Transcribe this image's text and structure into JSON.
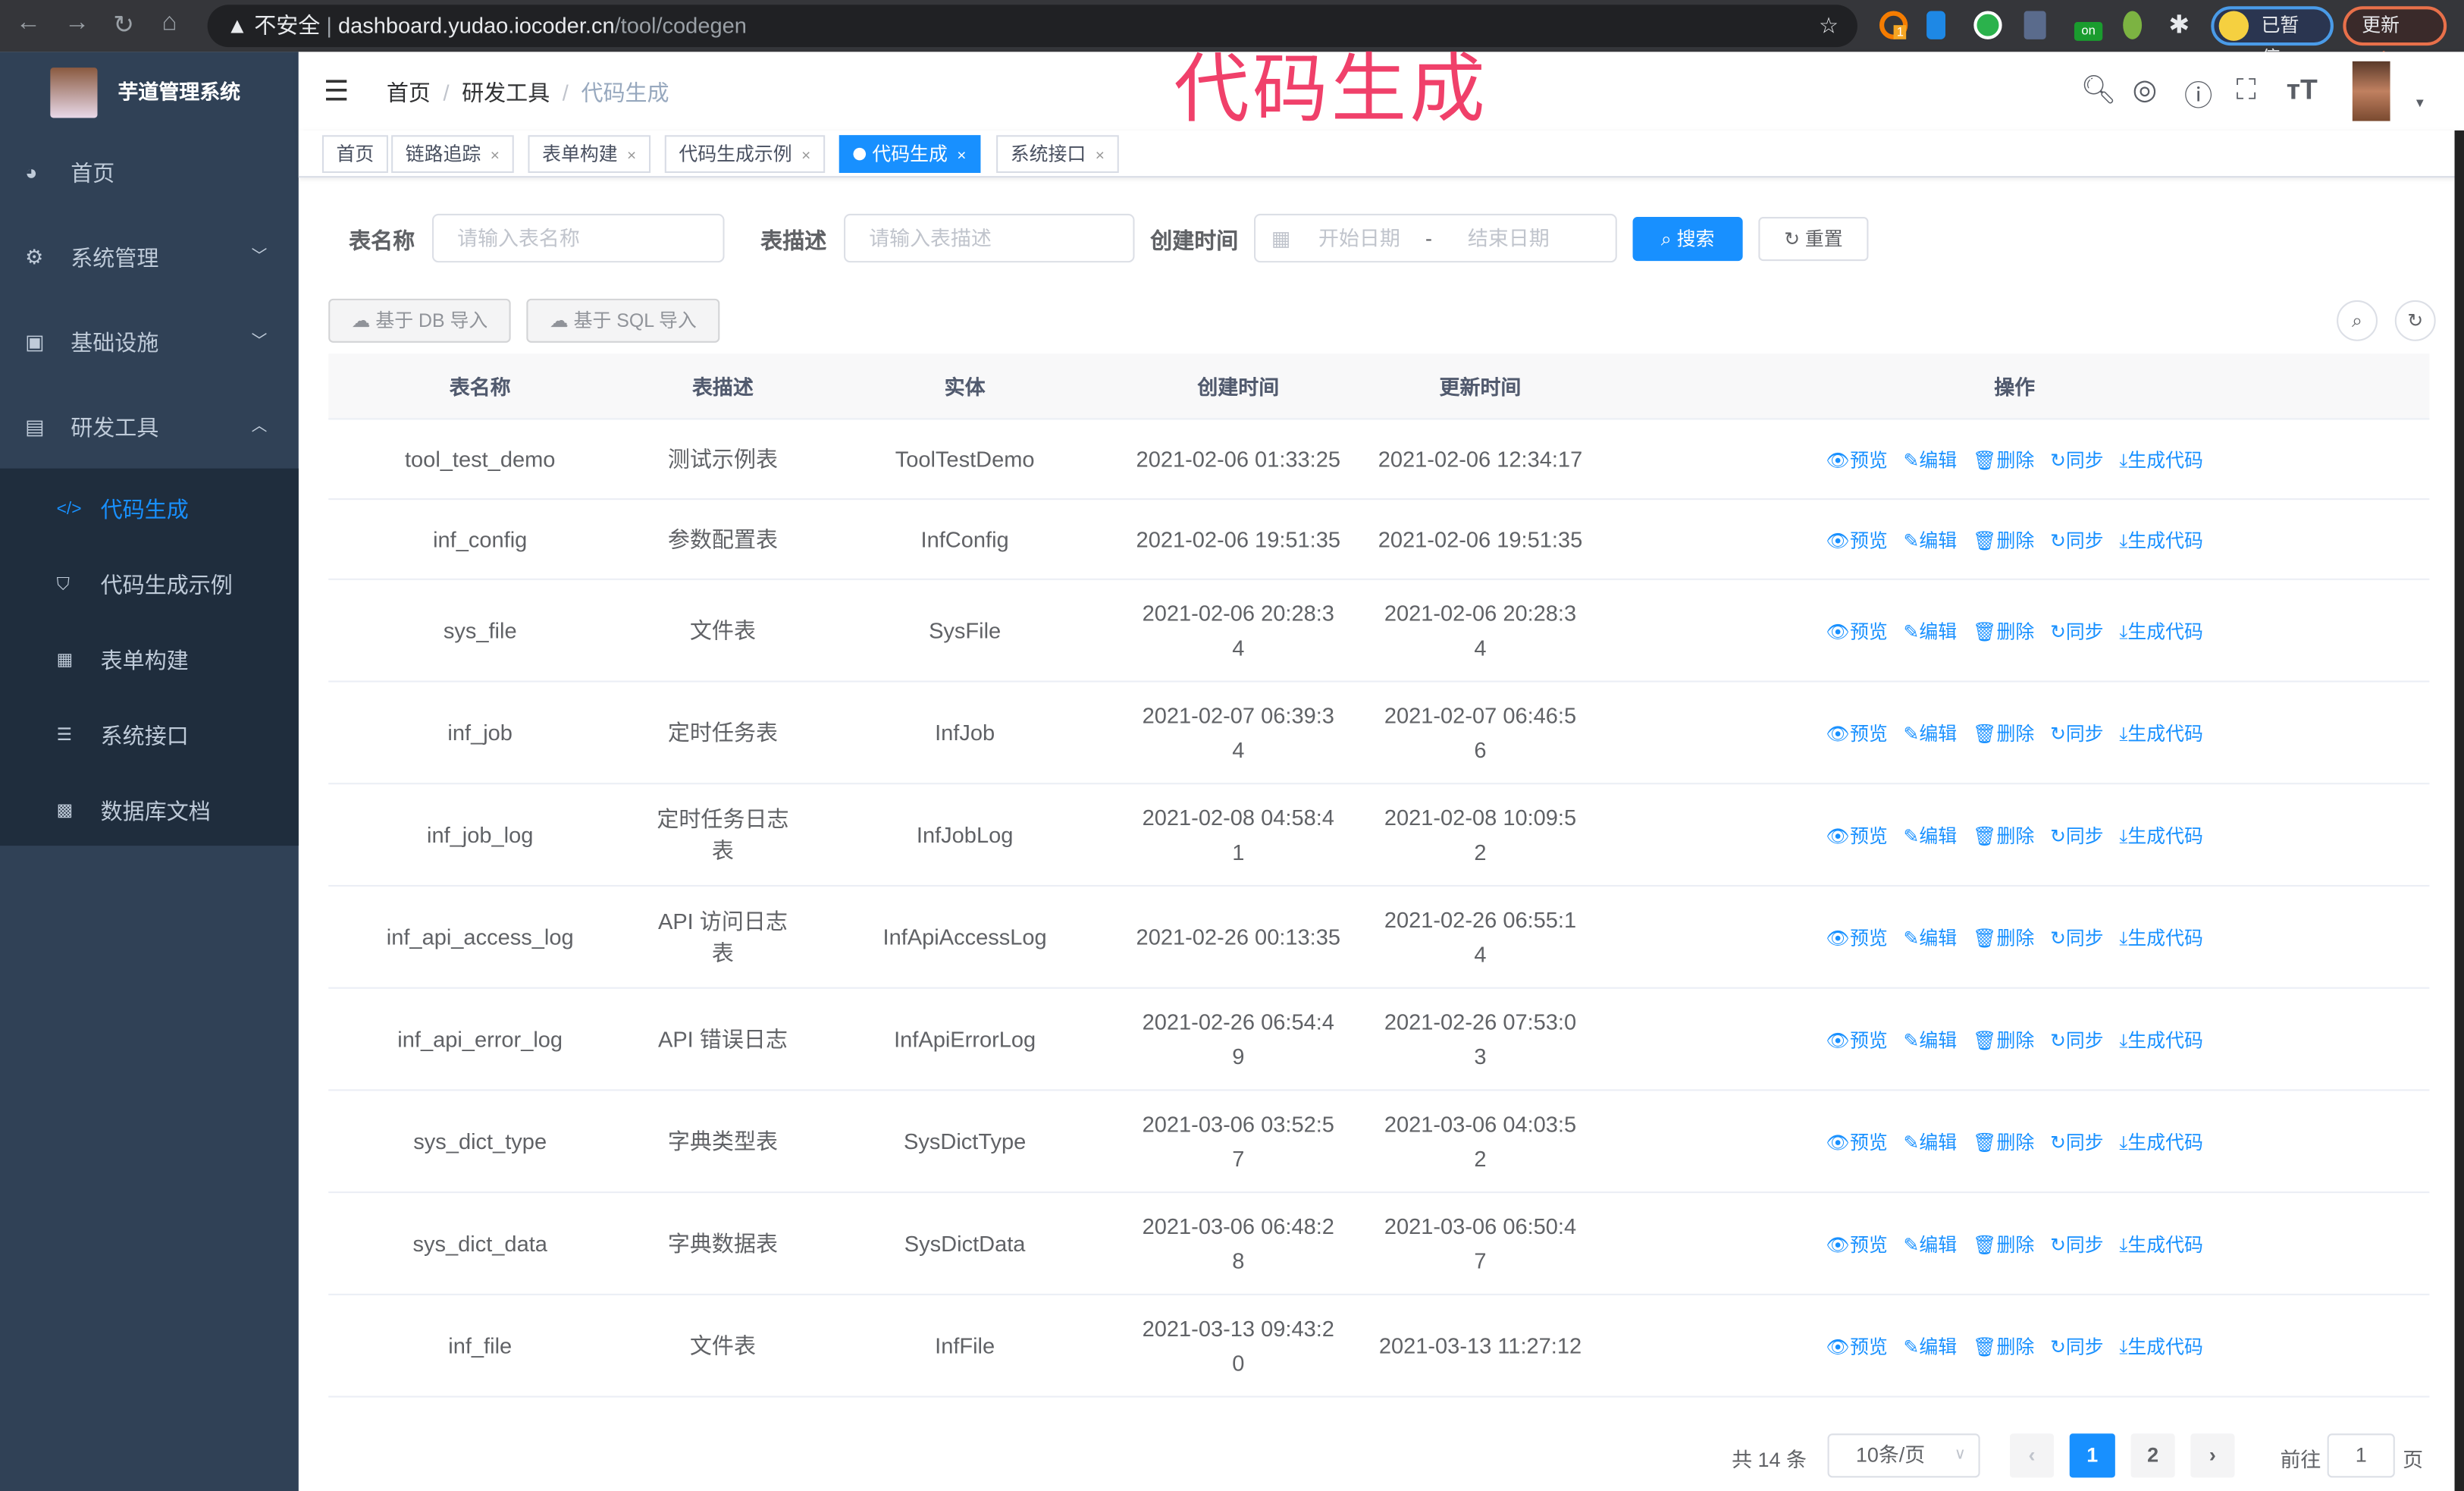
{
  "browser": {
    "url_prefix": "不安全",
    "url_host": "dashboard.yudao.iocoder.cn",
    "url_path": "/tool/codegen",
    "paused": "已暂停",
    "update": "更新",
    "ext_badge": "1",
    "ext_on": "on"
  },
  "watermark": "代码生成",
  "sidebar": {
    "brand": "芋道管理系统",
    "items": [
      {
        "label": "首页",
        "icon": "dashboard-icon"
      },
      {
        "label": "系统管理",
        "icon": "gear-icon"
      },
      {
        "label": "基础设施",
        "icon": "monitor-icon"
      },
      {
        "label": "研发工具",
        "icon": "toolbox-icon"
      }
    ],
    "sub_items": [
      {
        "label": "代码生成",
        "icon": "code-icon",
        "active": true
      },
      {
        "label": "代码生成示例",
        "icon": "shield-icon"
      },
      {
        "label": "表单构建",
        "icon": "form-icon"
      },
      {
        "label": "系统接口",
        "icon": "sliders-icon"
      },
      {
        "label": "数据库文档",
        "icon": "table-icon"
      }
    ]
  },
  "breadcrumb": [
    "首页",
    "研发工具",
    "代码生成"
  ],
  "tags": [
    {
      "label": "首页"
    },
    {
      "label": "链路追踪"
    },
    {
      "label": "表单构建"
    },
    {
      "label": "代码生成示例"
    },
    {
      "label": "代码生成",
      "active": true
    },
    {
      "label": "系统接口"
    }
  ],
  "search": {
    "name_label": "表名称",
    "name_placeholder": "请输入表名称",
    "desc_label": "表描述",
    "desc_placeholder": "请输入表描述",
    "time_label": "创建时间",
    "start_placeholder": "开始日期",
    "range_sep": "-",
    "end_placeholder": "结束日期",
    "search_btn": "搜索",
    "reset_btn": "重置"
  },
  "toolbar": {
    "import_db": "基于 DB 导入",
    "import_sql": "基于 SQL 导入"
  },
  "table": {
    "headers": [
      "表名称",
      "表描述",
      "实体",
      "创建时间",
      "更新时间",
      "操作"
    ],
    "actions": [
      "预览",
      "编辑",
      "删除",
      "同步",
      "生成代码"
    ],
    "rows": [
      [
        "tool_test_demo",
        "测试示例表",
        "ToolTestDemo",
        "2021-02-06 01:33:25",
        "2021-02-06 12:34:17"
      ],
      [
        "inf_config",
        "参数配置表",
        "InfConfig",
        "2021-02-06 19:51:35",
        "2021-02-06 19:51:35"
      ],
      [
        "sys_file",
        "文件表",
        "SysFile",
        "2021-02-06 20:28:34",
        "2021-02-06 20:28:34"
      ],
      [
        "inf_job",
        "定时任务表",
        "InfJob",
        "2021-02-07 06:39:34",
        "2021-02-07 06:46:56"
      ],
      [
        "inf_job_log",
        "定时任务日志表",
        "InfJobLog",
        "2021-02-08 04:58:41",
        "2021-02-08 10:09:52"
      ],
      [
        "inf_api_access_log",
        "API 访问日志表",
        "InfApiAccessLog",
        "2021-02-26 00:13:35",
        "2021-02-26 06:55:14"
      ],
      [
        "inf_api_error_log",
        "API 错误日志",
        "InfApiErrorLog",
        "2021-02-26 06:54:49",
        "2021-02-26 07:53:03"
      ],
      [
        "sys_dict_type",
        "字典类型表",
        "SysDictType",
        "2021-03-06 03:52:57",
        "2021-03-06 04:03:52"
      ],
      [
        "sys_dict_data",
        "字典数据表",
        "SysDictData",
        "2021-03-06 06:48:28",
        "2021-03-06 06:50:47"
      ],
      [
        "inf_file",
        "文件表",
        "InfFile",
        "2021-03-13 09:43:20",
        "2021-03-13 11:27:12"
      ]
    ]
  },
  "pagination": {
    "total": "共 14 条",
    "page_size": "10条/页",
    "pages": [
      "1",
      "2"
    ],
    "current": "1",
    "goto_label": "前往",
    "goto_value": "1",
    "goto_suffix": "页"
  },
  "colors": {
    "primary": "#1890ff",
    "sidebar": "#304156",
    "submenu": "#1f2d3d",
    "watermark": "#f0406a"
  }
}
